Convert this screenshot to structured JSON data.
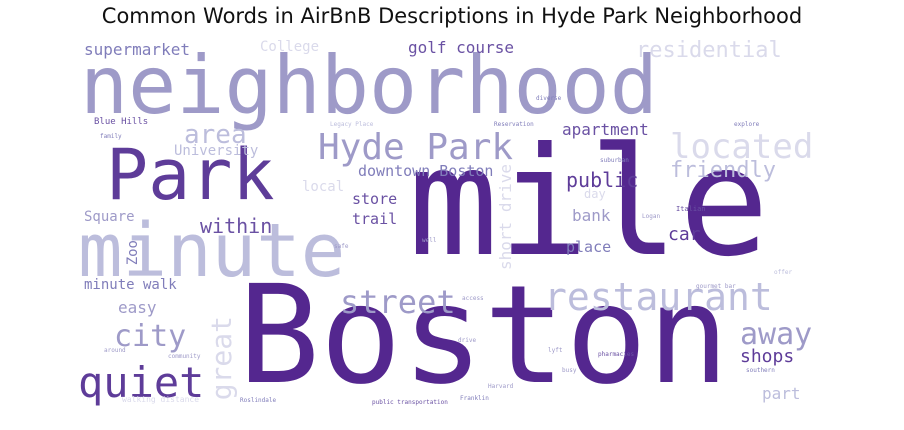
{
  "title": "Common Words in AirBnB Descriptions in Hyde Park Neighborhood",
  "chart_data": {
    "type": "wordcloud",
    "palette": [
      "#4a1486",
      "#6a51a3",
      "#807dba",
      "#9e9ac8",
      "#bcbddc",
      "#dadaeb"
    ],
    "words": [
      {
        "text": "mile",
        "color": "#54278f"
      },
      {
        "text": "Boston",
        "color": "#54278f"
      },
      {
        "text": "neighborhood",
        "color": "#9e9ac8"
      },
      {
        "text": "Park",
        "color": "#5e3c99"
      },
      {
        "text": "minute",
        "color": "#bcbddc"
      },
      {
        "text": "Hyde Park",
        "color": "#9e9ac8"
      },
      {
        "text": "restaurant",
        "color": "#bcbddc"
      },
      {
        "text": "located",
        "color": "#dadaeb"
      },
      {
        "text": "quiet",
        "color": "#5e3c99"
      },
      {
        "text": "street",
        "color": "#9e9ac8"
      },
      {
        "text": "city",
        "color": "#9e9ac8"
      },
      {
        "text": "away",
        "color": "#9e9ac8"
      },
      {
        "text": "area",
        "color": "#bcbddc"
      },
      {
        "text": "residential",
        "color": "#dadaeb"
      },
      {
        "text": "great",
        "color": "#dadaeb"
      },
      {
        "text": "friendly",
        "color": "#bcbddc"
      },
      {
        "text": "within",
        "color": "#6a51a3"
      },
      {
        "text": "public",
        "color": "#5e3c99"
      },
      {
        "text": "shops",
        "color": "#5e3c99"
      },
      {
        "text": "golf course",
        "color": "#6a51a3"
      },
      {
        "text": "supermarket",
        "color": "#807dba"
      },
      {
        "text": "apartment",
        "color": "#6a51a3"
      },
      {
        "text": "downtown Boston",
        "color": "#807dba"
      },
      {
        "text": "short drive",
        "color": "#dadaeb"
      },
      {
        "text": "University",
        "color": "#bcbddc"
      },
      {
        "text": "bank",
        "color": "#9e9ac8"
      },
      {
        "text": "car",
        "color": "#5e3c99"
      },
      {
        "text": "store",
        "color": "#6a51a3"
      },
      {
        "text": "trail",
        "color": "#6a51a3"
      },
      {
        "text": "place",
        "color": "#807dba"
      },
      {
        "text": "Square",
        "color": "#9e9ac8"
      },
      {
        "text": "easy",
        "color": "#9e9ac8"
      },
      {
        "text": "minute walk",
        "color": "#807dba"
      },
      {
        "text": "Zoo",
        "color": "#807dba"
      },
      {
        "text": "part",
        "color": "#bcbddc"
      },
      {
        "text": "College",
        "color": "#dadaeb"
      },
      {
        "text": "local",
        "color": "#dadaeb"
      },
      {
        "text": "day",
        "color": "#dadaeb"
      },
      {
        "text": "Blue Hills",
        "color": "#6a51a3"
      },
      {
        "text": "walking distance",
        "color": "#dadaeb"
      },
      {
        "text": "public transportation",
        "color": "#6a51a3"
      },
      {
        "text": "pharmacies",
        "color": "#6a51a3"
      },
      {
        "text": "Franklin",
        "color": "#807dba"
      },
      {
        "text": "Italian",
        "color": "#6a51a3"
      },
      {
        "text": "family",
        "color": "#807dba"
      },
      {
        "text": "explore",
        "color": "#807dba"
      },
      {
        "text": "Reservation",
        "color": "#807dba"
      },
      {
        "text": "diverse",
        "color": "#807dba"
      },
      {
        "text": "suburban",
        "color": "#807dba"
      },
      {
        "text": "Logan",
        "color": "#9e9ac8"
      },
      {
        "text": "southern",
        "color": "#807dba"
      },
      {
        "text": "Harvard",
        "color": "#9e9ac8"
      },
      {
        "text": "Legacy Place",
        "color": "#bcbddc"
      },
      {
        "text": "community",
        "color": "#9e9ac8"
      },
      {
        "text": "offer",
        "color": "#bcbddc"
      },
      {
        "text": "around",
        "color": "#9e9ac8"
      },
      {
        "text": "drive",
        "color": "#9e9ac8"
      },
      {
        "text": "access",
        "color": "#9e9ac8"
      },
      {
        "text": "Roslindale",
        "color": "#807dba"
      },
      {
        "text": "well",
        "color": "#9e9ac8"
      },
      {
        "text": "safe",
        "color": "#9e9ac8"
      },
      {
        "text": "lyft",
        "color": "#9e9ac8"
      },
      {
        "text": "busy",
        "color": "#9e9ac8"
      },
      {
        "text": "gourmet bar",
        "color": "#9e9ac8"
      }
    ]
  }
}
